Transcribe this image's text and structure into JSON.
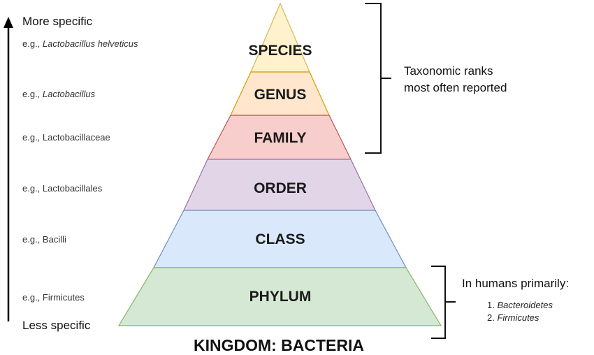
{
  "axis": {
    "top_label": "More specific",
    "bottom_label": "Less specific"
  },
  "levels": [
    {
      "rank": "SPECIES",
      "example_prefix": "e.g., ",
      "example_name": "Lactobacillus helveticus",
      "italic": true,
      "fill": "#fff2cc",
      "stroke": "#d6b656"
    },
    {
      "rank": "GENUS",
      "example_prefix": "e.g., ",
      "example_name": "Lactobacillus",
      "italic": true,
      "fill": "#ffe6cc",
      "stroke": "#d79b00"
    },
    {
      "rank": "FAMILY",
      "example_prefix": "e.g., ",
      "example_name": "Lactobacillaceae",
      "italic": false,
      "fill": "#f8cecc",
      "stroke": "#b85450"
    },
    {
      "rank": "ORDER",
      "example_prefix": "e.g., ",
      "example_name": "Lactobacillales",
      "italic": false,
      "fill": "#e1d5e7",
      "stroke": "#9673a6"
    },
    {
      "rank": "CLASS",
      "example_prefix": "e.g., ",
      "example_name": "Bacilli",
      "italic": false,
      "fill": "#dae8fc",
      "stroke": "#6c8ebf"
    },
    {
      "rank": "PHYLUM",
      "example_prefix": "e.g., ",
      "example_name": "Firmicutes",
      "italic": false,
      "fill": "#d5e8d4",
      "stroke": "#82b366"
    }
  ],
  "kingdom": "KINGDOM: BACTERIA",
  "brackets": {
    "top_note_line1": "Taxonomic ranks",
    "top_note_line2": "most often reported",
    "bottom_note_title": "In humans primarily:",
    "bottom_note_items": [
      "1. ",
      "Bacteroidetes",
      "2. ",
      "Firmicutes"
    ]
  }
}
